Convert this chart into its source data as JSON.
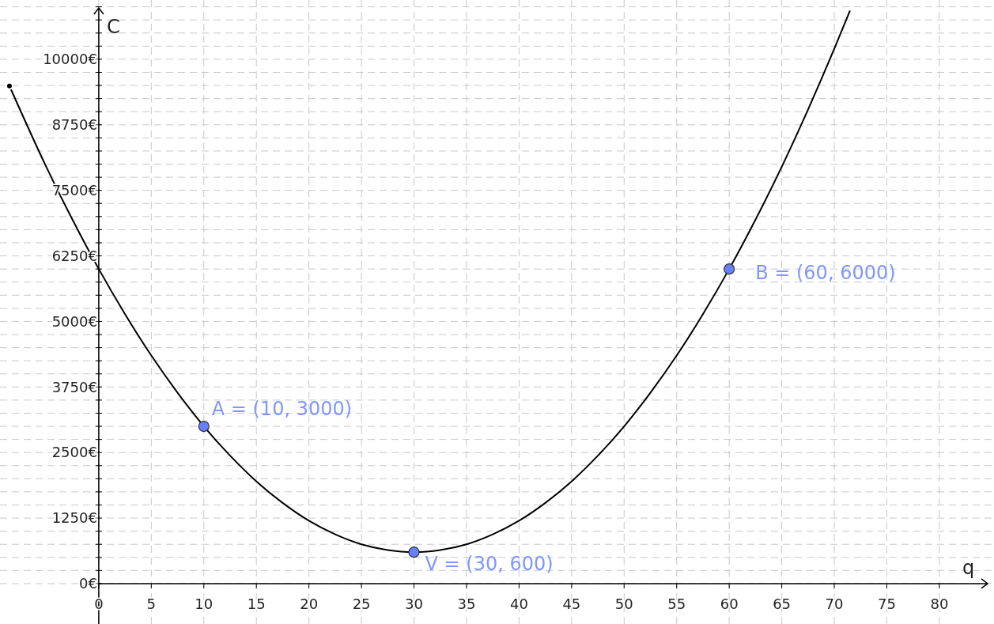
{
  "chart_data": {
    "type": "line",
    "xlabel": "q",
    "ylabel": "C",
    "grid": true,
    "xlim": [
      -9.4,
      85.2
    ],
    "ylim": [
      -770,
      11130
    ],
    "xticks": [
      0,
      5,
      10,
      15,
      20,
      25,
      30,
      35,
      40,
      45,
      50,
      55,
      60,
      65,
      70,
      75,
      80
    ],
    "yticks": [
      {
        "value": 0,
        "label": "0€"
      },
      {
        "value": 250,
        "label": null
      },
      {
        "value": 500,
        "label": null
      },
      {
        "value": 750,
        "label": null
      },
      {
        "value": 1000,
        "label": null
      },
      {
        "value": 1250,
        "label": "1250€"
      },
      {
        "value": 1500,
        "label": null
      },
      {
        "value": 1750,
        "label": null
      },
      {
        "value": 2000,
        "label": null
      },
      {
        "value": 2250,
        "label": null
      },
      {
        "value": 2500,
        "label": "2500€"
      },
      {
        "value": 2750,
        "label": null
      },
      {
        "value": 3000,
        "label": null
      },
      {
        "value": 3250,
        "label": null
      },
      {
        "value": 3500,
        "label": null
      },
      {
        "value": 3750,
        "label": "3750€"
      },
      {
        "value": 4000,
        "label": null
      },
      {
        "value": 4250,
        "label": null
      },
      {
        "value": 4500,
        "label": null
      },
      {
        "value": 4750,
        "label": null
      },
      {
        "value": 5000,
        "label": "5000€"
      },
      {
        "value": 5250,
        "label": null
      },
      {
        "value": 5500,
        "label": null
      },
      {
        "value": 5750,
        "label": null
      },
      {
        "value": 6000,
        "label": null
      },
      {
        "value": 6250,
        "label": "6250€"
      },
      {
        "value": 6500,
        "label": null
      },
      {
        "value": 6750,
        "label": null
      },
      {
        "value": 7000,
        "label": null
      },
      {
        "value": 7250,
        "label": null
      },
      {
        "value": 7500,
        "label": "7500€"
      },
      {
        "value": 7750,
        "label": null
      },
      {
        "value": 8000,
        "label": null
      },
      {
        "value": 8250,
        "label": null
      },
      {
        "value": 8500,
        "label": null
      },
      {
        "value": 8750,
        "label": "8750€"
      },
      {
        "value": 9000,
        "label": null
      },
      {
        "value": 9250,
        "label": null
      },
      {
        "value": 9500,
        "label": null
      },
      {
        "value": 9750,
        "label": null
      },
      {
        "value": 10000,
        "label": "10000€"
      },
      {
        "value": 10250,
        "label": null
      },
      {
        "value": 10500,
        "label": null
      },
      {
        "value": 10750,
        "label": null
      },
      {
        "value": 11000,
        "label": null
      }
    ],
    "series": [
      {
        "color": "#000000",
        "marker": "none",
        "line_style": "solid",
        "x": [
          -8.5,
          -5,
          -2.5,
          0,
          2.5,
          5,
          7.5,
          10,
          12.5,
          15,
          17.5,
          20,
          22.5,
          25,
          27.5,
          30,
          32.5,
          35,
          37.5,
          40,
          42.5,
          45,
          47.5,
          50,
          52.5,
          55,
          57.5,
          60,
          62.5,
          65,
          67.5,
          70,
          71.5
        ],
        "values": [
          9490,
          7950,
          6940,
          6000,
          5140,
          4350,
          3640,
          3000,
          2440,
          1950,
          1540,
          1200,
          940,
          750,
          640,
          600,
          640,
          750,
          940,
          1200,
          1540,
          1950,
          2440,
          3000,
          3640,
          4350,
          5140,
          6000,
          6940,
          7950,
          9040,
          10200,
          10930
        ]
      },
      {
        "type": "scatter",
        "color": "#6680ff",
        "marker": "circle",
        "x": [
          10,
          30,
          60
        ],
        "values": [
          3000,
          600,
          6000
        ]
      }
    ],
    "annotations": [
      {
        "text": "A = (10, 3000)",
        "x": 10,
        "y": 3000
      },
      {
        "text": "V = (30, 600)",
        "x": 30,
        "y": 600
      },
      {
        "text": "B = (60, 6000)",
        "x": 60,
        "y": 6000
      }
    ]
  }
}
